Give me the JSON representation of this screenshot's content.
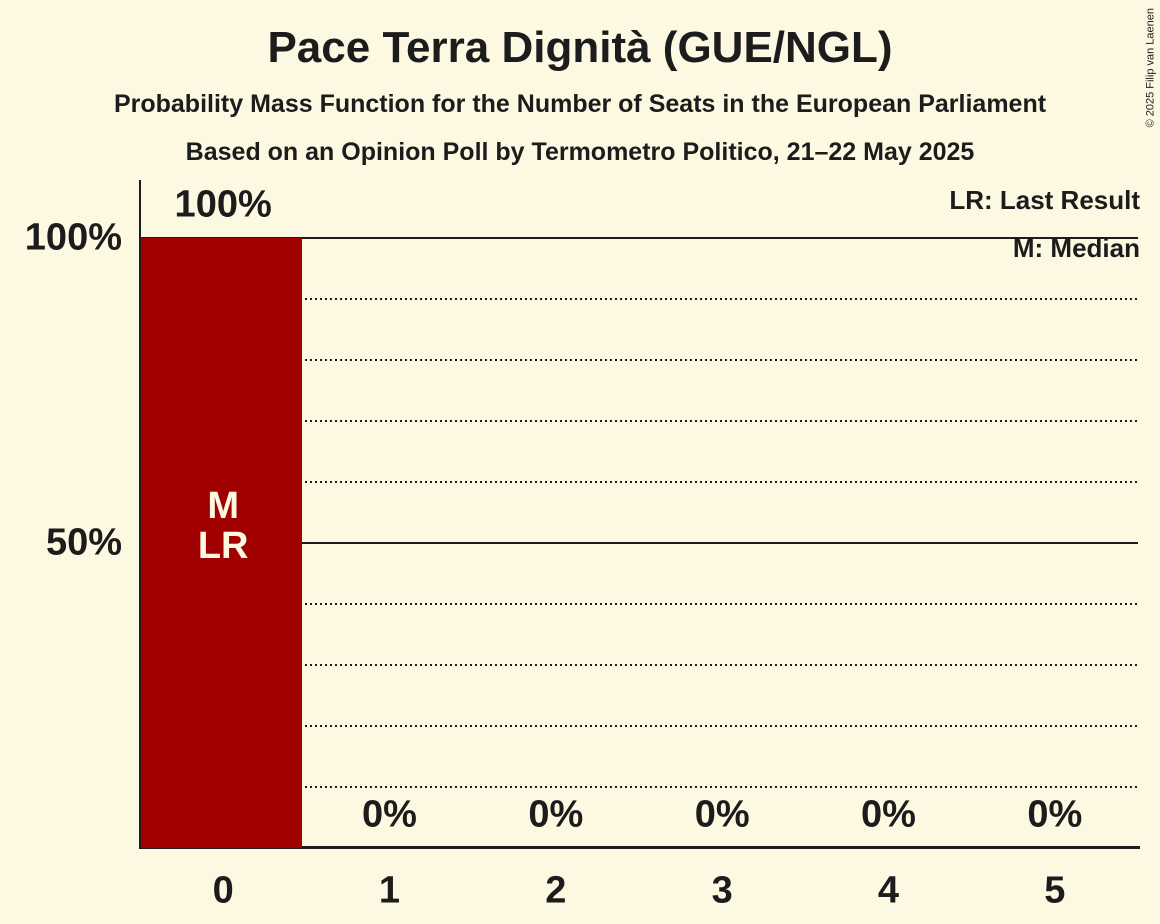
{
  "page": {
    "title": "Pace Terra Dignità (GUE/NGL)",
    "subtitle": "Probability Mass Function for the Number of Seats in the European Parliament",
    "poll_line": "Based on an Opinion Poll by Termometro Politico, 21–22 May 2025",
    "copyright": "© 2025 Filip van Laenen"
  },
  "legend": {
    "lr": "LR: Last Result",
    "m": "M: Median"
  },
  "colors": {
    "background": "#FDF8E1",
    "bar": "#A00000",
    "text": "#1C1C1C",
    "bar_label": "#FDF8E1"
  },
  "chart_data": {
    "type": "bar",
    "title": "Pace Terra Dignità (GUE/NGL)",
    "categories": [
      "0",
      "1",
      "2",
      "3",
      "4",
      "5"
    ],
    "values": [
      100,
      0,
      0,
      0,
      0,
      0
    ],
    "value_labels": [
      "100%",
      "0%",
      "0%",
      "0%",
      "0%",
      "0%"
    ],
    "ylim": [
      0,
      100
    ],
    "yticks": [
      {
        "value": 100,
        "label": "100%"
      },
      {
        "value": 50,
        "label": "50%"
      }
    ],
    "gridlines_solid": [
      100,
      50
    ],
    "gridlines_dotted": [
      90,
      80,
      70,
      60,
      40,
      30,
      20,
      10
    ],
    "grid": true,
    "legend_position": "top-right",
    "annotations": [
      {
        "category": "0",
        "lines": [
          "M",
          "LR"
        ]
      }
    ]
  }
}
